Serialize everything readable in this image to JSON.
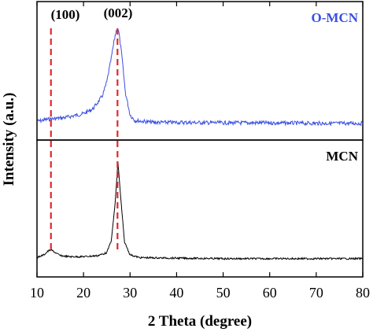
{
  "chart_data": {
    "type": "line",
    "xlabel": "2 Theta (degree)",
    "ylabel": "Intensity (a.u.)",
    "xlim": [
      10,
      80
    ],
    "x_ticks": [
      "10",
      "20",
      "30",
      "40",
      "50",
      "60",
      "70",
      "80"
    ],
    "y_ticks_shown": false,
    "stacked": true,
    "grid": false,
    "series": [
      {
        "name": "O-MCN",
        "color": "#3a4fe0",
        "panel": "top",
        "profile": [
          [
            10,
            0.03
          ],
          [
            12,
            0.05
          ],
          [
            14,
            0.06
          ],
          [
            16,
            0.07
          ],
          [
            18,
            0.09
          ],
          [
            20,
            0.11
          ],
          [
            22,
            0.16
          ],
          [
            24,
            0.29
          ],
          [
            25,
            0.44
          ],
          [
            26,
            0.7
          ],
          [
            26.8,
            0.93
          ],
          [
            27.2,
            1.0
          ],
          [
            27.6,
            0.96
          ],
          [
            28.3,
            0.68
          ],
          [
            29,
            0.33
          ],
          [
            30,
            0.1
          ],
          [
            31,
            0.04
          ],
          [
            35,
            0.02
          ],
          [
            40,
            0.02
          ],
          [
            50,
            0.015
          ],
          [
            60,
            0.015
          ],
          [
            70,
            0.01
          ],
          [
            80,
            0.01
          ]
        ]
      },
      {
        "name": "MCN",
        "color": "#000000",
        "panel": "bottom",
        "profile": [
          [
            10,
            0.02
          ],
          [
            11.5,
            0.05
          ],
          [
            12.5,
            0.09
          ],
          [
            13,
            0.1
          ],
          [
            14,
            0.07
          ],
          [
            15,
            0.04
          ],
          [
            17,
            0.03
          ],
          [
            20,
            0.03
          ],
          [
            23,
            0.04
          ],
          [
            25,
            0.07
          ],
          [
            26,
            0.2
          ],
          [
            26.8,
            0.58
          ],
          [
            27.4,
            1.0
          ],
          [
            28,
            0.62
          ],
          [
            28.8,
            0.18
          ],
          [
            30,
            0.05
          ],
          [
            32,
            0.02
          ],
          [
            40,
            0.015
          ],
          [
            50,
            0.01
          ],
          [
            60,
            0.01
          ],
          [
            70,
            0.01
          ],
          [
            80,
            0.01
          ]
        ]
      }
    ],
    "reference_lines": [
      {
        "x": 13.0,
        "label": "(100)",
        "color": "#e0282e",
        "style": "dashed"
      },
      {
        "x": 27.3,
        "label": "(002)",
        "color": "#e0282e",
        "style": "dashed"
      }
    ]
  },
  "labels": {
    "top_series": "O-MCN",
    "bottom_series": "MCN",
    "peak_100": "(100)",
    "peak_002": "(002)",
    "xlabel": "2 Theta (degree)",
    "ylabel": "Intensity (a.u.)"
  }
}
